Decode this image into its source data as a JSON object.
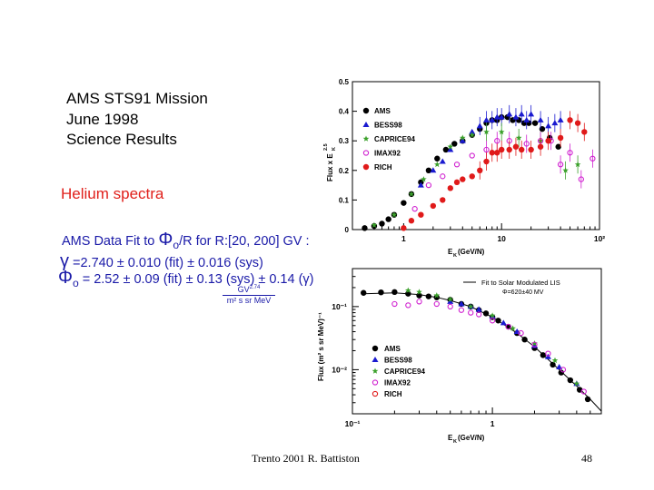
{
  "slide": {
    "title_lines": [
      "AMS  STS91 Mission",
      "June 1998",
      "Science Results"
    ],
    "subtitle": "Helium spectra",
    "fit": {
      "line1_prefix": "AMS Data Fit to ",
      "line1_phi": "Φ",
      "line1_sub": "o",
      "line1_mid": "/R  for  R",
      "line1_range": ":[20, 200] GV :",
      "gamma_sym": "γ",
      "gamma_text": " =2.740 ± 0.010 (fit)  ± 0.016 (sys)",
      "phi_sym": "Φ",
      "phi_sub": "o",
      "phi_text": " = 2.52 ± 0.09 (fit) ± 0.13 (sys) ± 0.14 (γ)",
      "units_num": "GV",
      "units_num_exp": "2.74",
      "units_den": "m² s sr MeV"
    },
    "footer_left": "Trento   2001      R. Battiston",
    "footer_right": "48"
  },
  "chart_data": [
    {
      "type": "scatter",
      "xlabel": "E_K (GeV/N)",
      "ylabel": "Flux x E_K^2.5",
      "xscale": "log",
      "xlim": [
        0.3,
        100
      ],
      "ylim": [
        0,
        0.5
      ],
      "xticks": [
        1,
        10,
        100
      ],
      "xtick_labels": [
        "1",
        "10",
        "10²"
      ],
      "yticks": [
        0,
        0.1,
        0.2,
        0.3,
        0.4,
        0.5
      ],
      "legend_placement": "top-left",
      "series": [
        {
          "name": "AMS",
          "color": "#000000",
          "marker": "circle",
          "x": [
            0.4,
            0.5,
            0.6,
            0.7,
            0.8,
            1.0,
            1.2,
            1.5,
            1.8,
            2.2,
            2.7,
            3.3,
            4,
            5,
            6,
            7,
            8,
            9,
            10,
            11.5,
            13,
            15,
            17,
            19,
            22,
            26,
            31,
            38
          ],
          "y": [
            0.005,
            0.012,
            0.02,
            0.035,
            0.05,
            0.09,
            0.12,
            0.16,
            0.2,
            0.24,
            0.27,
            0.29,
            0.3,
            0.32,
            0.34,
            0.36,
            0.37,
            0.37,
            0.38,
            0.38,
            0.37,
            0.37,
            0.36,
            0.36,
            0.36,
            0.34,
            0.31,
            0.28
          ]
        },
        {
          "name": "BESS98",
          "color": "#1a1ad0",
          "marker": "triangle",
          "x": [
            1.5,
            2,
            2.5,
            3,
            4,
            5,
            6,
            7,
            8,
            9,
            10,
            12,
            14,
            16,
            18,
            20,
            25,
            30,
            35,
            40
          ],
          "y": [
            0.15,
            0.2,
            0.23,
            0.27,
            0.3,
            0.33,
            0.35,
            0.37,
            0.37,
            0.38,
            0.38,
            0.39,
            0.38,
            0.39,
            0.37,
            0.39,
            0.37,
            0.35,
            0.36,
            0.37
          ]
        },
        {
          "name": "CAPRICE94",
          "color": "#3aa02a",
          "marker": "star",
          "x": [
            0.5,
            0.8,
            1.2,
            1.6,
            2.2,
            3,
            4,
            5,
            7,
            10,
            15,
            25,
            45,
            60
          ],
          "y": [
            0.015,
            0.05,
            0.12,
            0.17,
            0.22,
            0.28,
            0.31,
            0.32,
            0.33,
            0.33,
            0.31,
            0.3,
            0.2,
            0.22
          ]
        },
        {
          "name": "IMAX92",
          "color": "#d020d0",
          "marker": "open-circle",
          "x": [
            1.3,
            1.8,
            2.5,
            3.5,
            5,
            7,
            9,
            12,
            18,
            25,
            32,
            40,
            50,
            65,
            85
          ],
          "y": [
            0.07,
            0.15,
            0.18,
            0.22,
            0.25,
            0.27,
            0.3,
            0.3,
            0.29,
            0.3,
            0.3,
            0.22,
            0.26,
            0.17,
            0.24
          ]
        },
        {
          "name": "RICH",
          "color": "#e01a1a",
          "marker": "circle",
          "x": [
            1.0,
            1.2,
            1.5,
            2,
            2.5,
            3,
            3.5,
            4,
            5,
            6,
            7,
            8,
            9,
            10,
            12,
            14,
            16,
            20,
            25,
            30,
            40,
            50,
            60,
            70
          ],
          "y": [
            0.005,
            0.03,
            0.05,
            0.08,
            0.1,
            0.14,
            0.16,
            0.17,
            0.18,
            0.2,
            0.23,
            0.26,
            0.26,
            0.27,
            0.27,
            0.28,
            0.27,
            0.27,
            0.28,
            0.3,
            0.31,
            0.37,
            0.36,
            0.33
          ]
        }
      ]
    },
    {
      "type": "scatter",
      "xlabel": "E_K (GeV/N)",
      "ylabel": "Flux (m² s sr MeV)⁻¹",
      "xscale": "log",
      "yscale": "log",
      "xlim": [
        0.1,
        6
      ],
      "ylim": [
        0.002,
        0.4
      ],
      "xticks": [
        0.1,
        1
      ],
      "xtick_labels": [
        "10⁻¹",
        "1"
      ],
      "yticks": [
        0.1,
        0.01
      ],
      "ytick_labels": [
        "10⁻¹",
        "10⁻²"
      ],
      "legend_placement": "bottom-left",
      "fit_legend": "Fit to Solar Modulated LIS",
      "fit_legend_sub": "Φ=620±40 MV",
      "fit_curve": {
        "x": [
          0.12,
          0.2,
          0.3,
          0.4,
          0.5,
          0.7,
          1,
          1.5,
          2,
          3,
          4,
          5,
          6
        ],
        "y": [
          0.16,
          0.165,
          0.155,
          0.14,
          0.125,
          0.1,
          0.068,
          0.038,
          0.023,
          0.01,
          0.0055,
          0.0034,
          0.0022
        ]
      },
      "series": [
        {
          "name": "AMS",
          "color": "#000000",
          "marker": "circle",
          "x": [
            0.12,
            0.16,
            0.2,
            0.25,
            0.3,
            0.35,
            0.4,
            0.5,
            0.6,
            0.7,
            0.8,
            0.9,
            1.0,
            1.1,
            1.3,
            1.5,
            1.7,
            2.0,
            2.3,
            2.7,
            3.1,
            3.6,
            4.2,
            4.8
          ],
          "y": [
            0.165,
            0.168,
            0.17,
            0.16,
            0.15,
            0.145,
            0.14,
            0.128,
            0.11,
            0.1,
            0.088,
            0.078,
            0.068,
            0.06,
            0.048,
            0.038,
            0.03,
            0.022,
            0.017,
            0.012,
            0.009,
            0.0068,
            0.0048,
            0.0034
          ]
        },
        {
          "name": "BESS98",
          "color": "#1a1ad0",
          "marker": "triangle",
          "x": [
            0.5,
            0.6,
            0.7,
            0.8,
            1.0,
            1.2,
            1.5,
            2,
            2.5,
            3,
            4
          ],
          "y": [
            0.12,
            0.11,
            0.1,
            0.09,
            0.07,
            0.055,
            0.04,
            0.024,
            0.016,
            0.011,
            0.006
          ]
        },
        {
          "name": "CAPRICE94",
          "color": "#3aa02a",
          "marker": "star",
          "x": [
            0.25,
            0.3,
            0.4,
            0.5,
            0.7,
            1.0,
            1.4,
            2,
            2.8,
            4
          ],
          "y": [
            0.18,
            0.17,
            0.15,
            0.13,
            0.1,
            0.072,
            0.045,
            0.026,
            0.014,
            0.006
          ]
        },
        {
          "name": "IMAX92",
          "color": "#d020d0",
          "marker": "open-circle",
          "x": [
            0.2,
            0.25,
            0.3,
            0.4,
            0.5,
            0.6,
            0.7,
            0.8,
            1.0,
            1.3,
            1.6,
            2.0,
            2.5,
            3.2,
            4.5
          ],
          "y": [
            0.11,
            0.105,
            0.12,
            0.11,
            0.1,
            0.088,
            0.08,
            0.075,
            0.06,
            0.048,
            0.038,
            0.025,
            0.018,
            0.01,
            0.0045
          ]
        },
        {
          "name": "RICH",
          "color": "#e01a1a",
          "marker": "open-circle",
          "x": [],
          "y": []
        }
      ]
    }
  ]
}
